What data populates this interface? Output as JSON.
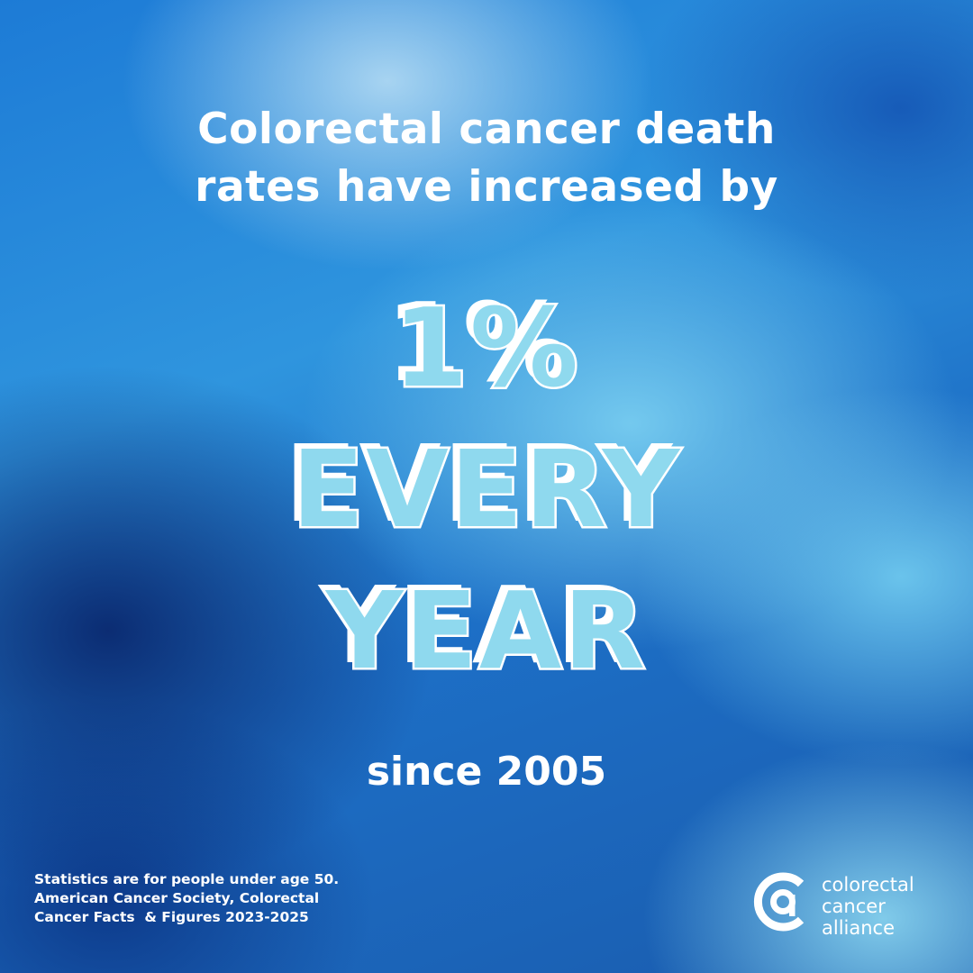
{
  "headline": {
    "line1": "Colorectal cancer death",
    "line2": "rates have increased by"
  },
  "stat": {
    "percent": "1%",
    "line2": "EVERY",
    "line3": "YEAR"
  },
  "since": "since 2005",
  "footnote": {
    "line1": "Statistics are for people under age 50.",
    "line2": "American Cancer Society, Colorectal",
    "line3": "Cancer Facts  & Figures 2023-2025"
  },
  "brand": {
    "line1": "colorectal",
    "line2": "cancer",
    "line3": "alliance",
    "logo_icon": "cca-logo-icon"
  },
  "colors": {
    "text": "#ffffff",
    "big_fill": "#8fd9ee",
    "bg_dark": "#0a286e",
    "bg_light": "#78cdf0"
  }
}
